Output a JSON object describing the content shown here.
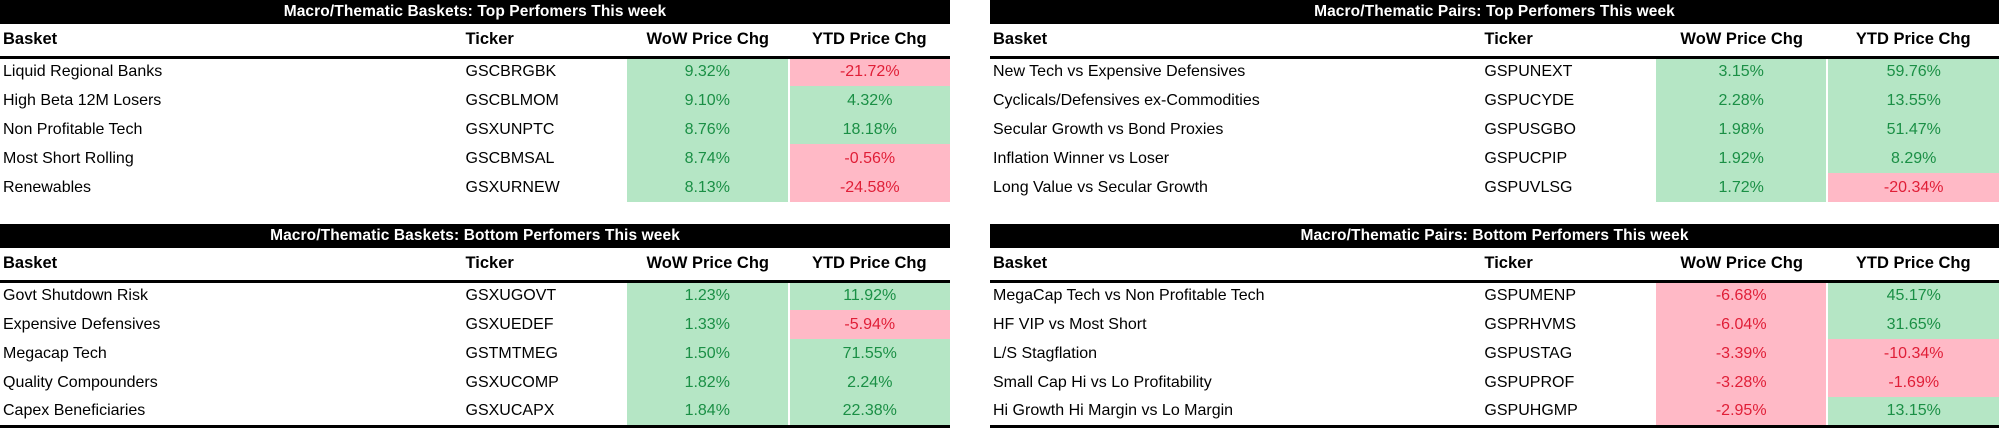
{
  "colors": {
    "title_bg": "#000000",
    "title_text": "#ffffff",
    "positive_bg": "#b5e6c5",
    "positive_text": "#1a8f45",
    "negative_bg": "#ffb9c6",
    "negative_text": "#e01e37"
  },
  "columns": {
    "basket": "Basket",
    "ticker": "Ticker",
    "wow": "WoW Price Chg",
    "ytd": "YTD Price Chg"
  },
  "tables": [
    {
      "id": "baskets-top",
      "title": "Macro/Thematic Baskets: Top Perfomers This week",
      "rows": [
        {
          "basket": "Liquid Regional Banks",
          "ticker": "GSCBRGBK",
          "wow": "9.32%",
          "ytd": "-21.72%"
        },
        {
          "basket": "High Beta 12M Losers",
          "ticker": "GSCBLMOM",
          "wow": "9.10%",
          "ytd": "4.32%"
        },
        {
          "basket": "Non Profitable Tech",
          "ticker": "GSXUNPTC",
          "wow": "8.76%",
          "ytd": "18.18%"
        },
        {
          "basket": "Most Short Rolling",
          "ticker": "GSCBMSAL",
          "wow": "8.74%",
          "ytd": "-0.56%"
        },
        {
          "basket": "Renewables",
          "ticker": "GSXURNEW",
          "wow": "8.13%",
          "ytd": "-24.58%"
        }
      ]
    },
    {
      "id": "pairs-top",
      "title": "Macro/Thematic Pairs: Top Perfomers This week",
      "rows": [
        {
          "basket": "New Tech vs Expensive Defensives",
          "ticker": "GSPUNEXT",
          "wow": "3.15%",
          "ytd": "59.76%"
        },
        {
          "basket": "Cyclicals/Defensives ex-Commodities",
          "ticker": "GSPUCYDE",
          "wow": "2.28%",
          "ytd": "13.55%"
        },
        {
          "basket": "Secular Growth vs Bond Proxies",
          "ticker": "GSPUSGBO",
          "wow": "1.98%",
          "ytd": "51.47%"
        },
        {
          "basket": "Inflation Winner vs Loser",
          "ticker": "GSPUCPIP",
          "wow": "1.92%",
          "ytd": "8.29%"
        },
        {
          "basket": "Long Value vs Secular Growth",
          "ticker": "GSPUVLSG",
          "wow": "1.72%",
          "ytd": "-20.34%"
        }
      ]
    },
    {
      "id": "baskets-bottom",
      "title": "Macro/Thematic Baskets: Bottom Perfomers This week",
      "rows": [
        {
          "basket": "Govt Shutdown Risk",
          "ticker": "GSXUGOVT",
          "wow": "1.23%",
          "ytd": "11.92%"
        },
        {
          "basket": "Expensive Defensives",
          "ticker": "GSXUEDEF",
          "wow": "1.33%",
          "ytd": "-5.94%"
        },
        {
          "basket": "Megacap Tech",
          "ticker": "GSTMTMEG",
          "wow": "1.50%",
          "ytd": "71.55%"
        },
        {
          "basket": "Quality Compounders",
          "ticker": "GSXUCOMP",
          "wow": "1.82%",
          "ytd": "2.24%"
        },
        {
          "basket": "Capex Beneficiaries",
          "ticker": "GSXUCAPX",
          "wow": "1.84%",
          "ytd": "22.38%"
        }
      ]
    },
    {
      "id": "pairs-bottom",
      "title": "Macro/Thematic Pairs: Bottom Perfomers This week",
      "rows": [
        {
          "basket": "MegaCap Tech vs Non Profitable Tech",
          "ticker": "GSPUMENP",
          "wow": "-6.68%",
          "ytd": "45.17%"
        },
        {
          "basket": "HF VIP vs Most Short",
          "ticker": "GSPRHVMS",
          "wow": "-6.04%",
          "ytd": "31.65%"
        },
        {
          "basket": "L/S Stagflation",
          "ticker": "GSPUSTAG",
          "wow": "-3.39%",
          "ytd": "-10.34%"
        },
        {
          "basket": "Small Cap Hi vs Lo Profitability",
          "ticker": "GSPUPROF",
          "wow": "-3.28%",
          "ytd": "-1.69%"
        },
        {
          "basket": "Hi Growth Hi Margin vs Lo Margin",
          "ticker": "GSPUHGMP",
          "wow": "-2.95%",
          "ytd": "13.15%"
        }
      ]
    }
  ]
}
